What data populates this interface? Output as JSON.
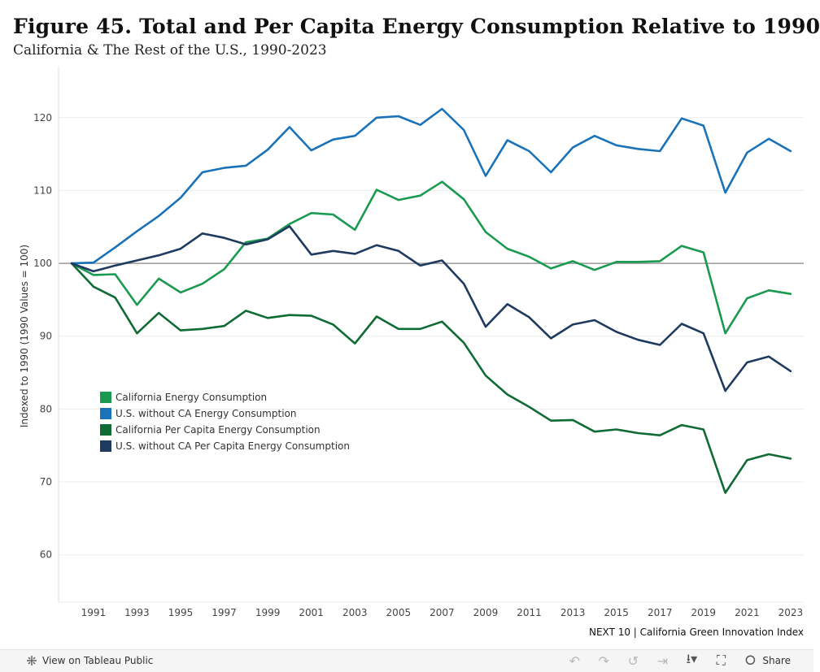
{
  "header": {
    "title": "Figure 45. Total and Per Capita Energy Consumption Relative to 1990",
    "subtitle": "California & The Rest of the U.S., 1990-2023"
  },
  "footer": {
    "credit": "NEXT 10 | California Green Innovation Index"
  },
  "toolbar": {
    "view_label": "View on Tableau Public",
    "share_label": "Share",
    "icons": [
      "undo-icon",
      "redo-icon",
      "revert-icon",
      "forward-icon",
      "download-icon",
      "fullscreen-icon",
      "share-icon"
    ]
  },
  "chart_data": {
    "type": "line",
    "title": "Figure 45. Total and Per Capita Energy Consumption Relative to 1990",
    "subtitle": "California & The Rest of the U.S., 1990-2023",
    "ylabel": "Indexed to 1990 (1990 Values = 100)",
    "xlabel": "",
    "ylim": [
      53.5,
      127
    ],
    "xlim": [
      1989.4,
      2023.6
    ],
    "yticks": [
      60,
      70,
      80,
      90,
      100,
      110,
      120
    ],
    "xticks": [
      1991,
      1993,
      1995,
      1997,
      1999,
      2001,
      2003,
      2005,
      2007,
      2009,
      2011,
      2013,
      2015,
      2017,
      2019,
      2021,
      2023
    ],
    "reference_line": 100,
    "grid": "horizontal",
    "legend_position": "bottom-left inside plot",
    "x": [
      1990,
      1991,
      1992,
      1993,
      1994,
      1995,
      1996,
      1997,
      1998,
      1999,
      2000,
      2001,
      2002,
      2003,
      2004,
      2005,
      2006,
      2007,
      2008,
      2009,
      2010,
      2011,
      2012,
      2013,
      2014,
      2015,
      2016,
      2017,
      2018,
      2019,
      2020,
      2021,
      2022,
      2023
    ],
    "series": [
      {
        "name": "California Energy Consumption",
        "color": "#1a9a50",
        "values": [
          100,
          98.4,
          98.5,
          94.3,
          97.9,
          96.0,
          97.2,
          99.2,
          102.9,
          103.4,
          105.4,
          106.9,
          106.7,
          104.6,
          110.1,
          108.7,
          109.3,
          111.2,
          108.8,
          104.3,
          102.0,
          100.9,
          99.3,
          100.3,
          99.1,
          100.2,
          100.2,
          100.3,
          102.4,
          101.5,
          90.4,
          95.2,
          96.3,
          95.8
        ]
      },
      {
        "name": "U.S. without CA Energy Consumption",
        "color": "#1a72b8",
        "values": [
          100,
          100.1,
          102.2,
          104.4,
          106.5,
          109.0,
          112.5,
          113.1,
          113.4,
          115.6,
          118.7,
          115.5,
          117.0,
          117.5,
          120.0,
          120.2,
          119.0,
          121.2,
          118.3,
          112.0,
          116.9,
          115.4,
          112.5,
          115.9,
          117.5,
          116.2,
          115.7,
          115.4,
          119.9,
          118.9,
          109.7,
          115.2,
          117.1,
          115.4
        ]
      },
      {
        "name": "California Per Capita Energy Consumption",
        "color": "#0f6b34",
        "values": [
          100,
          96.8,
          95.3,
          90.4,
          93.2,
          90.8,
          91.0,
          91.4,
          93.5,
          92.5,
          92.9,
          92.8,
          91.6,
          89.0,
          92.7,
          91.0,
          91.0,
          92.0,
          89.1,
          84.6,
          82.0,
          80.3,
          78.4,
          78.5,
          76.9,
          77.2,
          76.7,
          76.4,
          77.8,
          77.2,
          68.5,
          73.0,
          73.8,
          73.2
        ]
      },
      {
        "name": "U.S. without CA Per Capita Energy Consumption",
        "color": "#1f3a5f",
        "values": [
          100,
          98.9,
          99.7,
          100.4,
          101.1,
          102.0,
          104.1,
          103.5,
          102.6,
          103.3,
          105.1,
          101.2,
          101.7,
          101.3,
          102.5,
          101.7,
          99.7,
          100.4,
          97.2,
          91.3,
          94.4,
          92.6,
          89.7,
          91.6,
          92.2,
          90.6,
          89.5,
          88.8,
          91.7,
          90.4,
          82.5,
          86.4,
          87.2,
          85.2
        ]
      }
    ]
  }
}
